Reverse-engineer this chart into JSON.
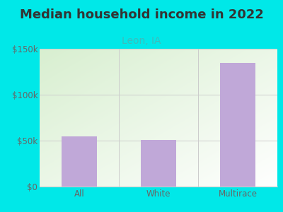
{
  "categories": [
    "All",
    "White",
    "Multirace"
  ],
  "values": [
    55000,
    51000,
    135000
  ],
  "bar_color": "#c0a8d8",
  "title": "Median household income in 2022",
  "subtitle": "Leon, IA",
  "subtitle_color": "#3dbcbc",
  "title_color": "#333333",
  "background_color": "#00e8e8",
  "plot_bg_color_top_left": "#d8efd0",
  "plot_bg_color_bottom_right": "#ffffff",
  "ylim": [
    0,
    150000
  ],
  "yticks": [
    0,
    50000,
    100000,
    150000
  ],
  "ytick_labels": [
    "$0",
    "$50k",
    "$100k",
    "$150k"
  ],
  "title_fontsize": 13,
  "subtitle_fontsize": 10,
  "tick_fontsize": 8.5,
  "tick_color": "#666666",
  "grid_color": "#cccccc",
  "bar_width": 0.45
}
